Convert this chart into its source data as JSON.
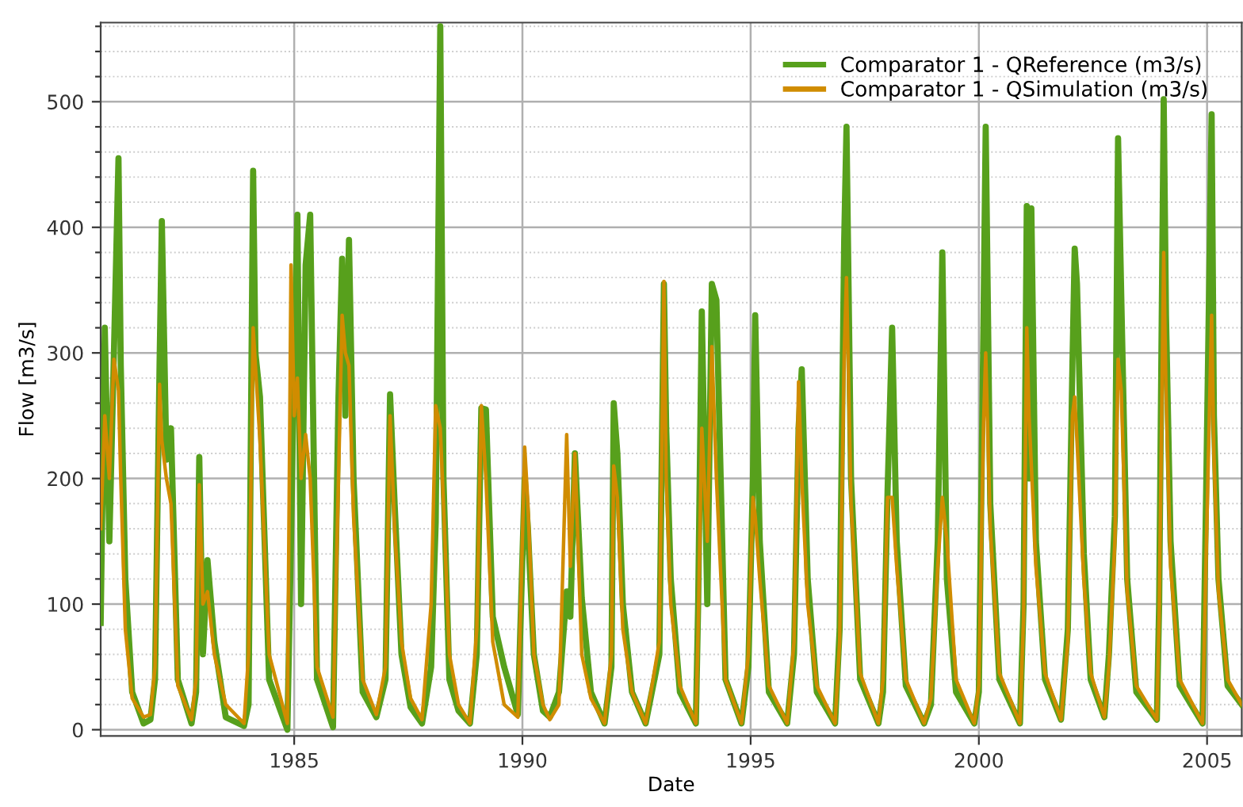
{
  "chart_data": {
    "type": "line",
    "xlabel": "Date",
    "ylabel": "Flow [m3/s]",
    "x": [
      1980.76,
      1980.85,
      1980.95,
      1981.05,
      1981.15,
      1981.2,
      1981.3,
      1981.45,
      1981.7,
      1981.85,
      1981.95,
      1982.05,
      1982.1,
      1982.2,
      1982.3,
      1982.45,
      1982.75,
      1982.85,
      1982.92,
      1983.0,
      1983.1,
      1983.25,
      1983.5,
      1983.9,
      1984.0,
      1984.1,
      1984.15,
      1984.25,
      1984.45,
      1984.85,
      1984.93,
      1985.0,
      1985.07,
      1985.15,
      1985.25,
      1985.35,
      1985.5,
      1985.85,
      1985.97,
      1986.05,
      1986.12,
      1986.2,
      1986.3,
      1986.5,
      1986.8,
      1987.0,
      1987.1,
      1987.2,
      1987.35,
      1987.55,
      1987.8,
      1988.0,
      1988.1,
      1988.2,
      1988.27,
      1988.4,
      1988.6,
      1988.85,
      1989.0,
      1989.1,
      1989.2,
      1989.35,
      1989.6,
      1989.9,
      1990.05,
      1990.12,
      1990.25,
      1990.45,
      1990.6,
      1990.8,
      1990.97,
      1991.05,
      1991.15,
      1991.3,
      1991.5,
      1991.8,
      1991.95,
      1992.0,
      1992.08,
      1992.2,
      1992.4,
      1992.7,
      1993.0,
      1993.1,
      1993.15,
      1993.25,
      1993.45,
      1993.8,
      1993.85,
      1993.93,
      1994.05,
      1994.15,
      1994.25,
      1994.45,
      1994.8,
      1994.95,
      1995.05,
      1995.1,
      1995.2,
      1995.4,
      1995.8,
      1995.95,
      1996.05,
      1996.12,
      1996.25,
      1996.45,
      1996.85,
      1996.95,
      1997.05,
      1997.1,
      1997.2,
      1997.4,
      1997.8,
      1997.9,
      1998.0,
      1998.1,
      1998.2,
      1998.4,
      1998.8,
      1998.95,
      1999.1,
      1999.2,
      1999.3,
      1999.5,
      1999.9,
      2000.0,
      2000.1,
      2000.15,
      2000.25,
      2000.45,
      2000.9,
      2000.98,
      2001.05,
      2001.1,
      2001.15,
      2001.25,
      2001.45,
      2001.8,
      2001.95,
      2002.05,
      2002.1,
      2002.15,
      2002.3,
      2002.45,
      2002.75,
      2002.85,
      2002.98,
      2003.05,
      2003.12,
      2003.25,
      2003.45,
      2003.9,
      2003.95,
      2004.05,
      2004.1,
      2004.2,
      2004.4,
      2004.9,
      2004.98,
      2005.1,
      2005.15,
      2005.25,
      2005.45,
      2005.76
    ],
    "series": [
      {
        "name": "Comparator 1 - QReference (m3/s)",
        "color": "#57a01c",
        "values": [
          85,
          320,
          150,
          300,
          455,
          290,
          120,
          30,
          5,
          8,
          40,
          290,
          405,
          215,
          240,
          40,
          5,
          30,
          217,
          60,
          135,
          70,
          10,
          3,
          20,
          445,
          300,
          265,
          40,
          0,
          150,
          300,
          410,
          100,
          370,
          410,
          40,
          2,
          265,
          375,
          250,
          390,
          200,
          30,
          10,
          40,
          267,
          180,
          60,
          18,
          5,
          50,
          165,
          560,
          200,
          40,
          15,
          5,
          60,
          256,
          255,
          90,
          50,
          12,
          200,
          160,
          60,
          15,
          10,
          30,
          110,
          90,
          220,
          105,
          30,
          5,
          50,
          260,
          220,
          100,
          30,
          5,
          60,
          355,
          240,
          120,
          30,
          5,
          100,
          333,
          100,
          355,
          342,
          40,
          5,
          50,
          200,
          330,
          150,
          30,
          5,
          60,
          240,
          287,
          120,
          30,
          5,
          80,
          390,
          480,
          200,
          40,
          5,
          30,
          190,
          320,
          150,
          35,
          5,
          20,
          150,
          380,
          120,
          30,
          5,
          30,
          320,
          480,
          180,
          40,
          5,
          100,
          417,
          200,
          415,
          150,
          40,
          8,
          80,
          290,
          383,
          355,
          140,
          40,
          10,
          60,
          170,
          471,
          345,
          120,
          30,
          8,
          100,
          502,
          330,
          150,
          35,
          5,
          190,
          490,
          250,
          120,
          35,
          20
        ]
      },
      {
        "name": "Comparator 1 - QSimulation (m3/s)",
        "color": "#d08c00",
        "values": [
          160,
          250,
          200,
          295,
          270,
          200,
          80,
          25,
          10,
          12,
          50,
          275,
          230,
          200,
          180,
          35,
          8,
          40,
          195,
          100,
          110,
          60,
          20,
          5,
          60,
          320,
          290,
          230,
          60,
          5,
          370,
          250,
          280,
          200,
          235,
          200,
          50,
          10,
          200,
          330,
          300,
          290,
          170,
          40,
          12,
          50,
          250,
          160,
          70,
          25,
          8,
          100,
          258,
          240,
          180,
          60,
          20,
          5,
          80,
          258,
          200,
          70,
          20,
          10,
          225,
          180,
          60,
          20,
          8,
          20,
          235,
          130,
          220,
          60,
          25,
          5,
          60,
          210,
          185,
          80,
          30,
          5,
          70,
          357,
          200,
          100,
          35,
          5,
          80,
          240,
          150,
          305,
          200,
          40,
          5,
          60,
          185,
          170,
          120,
          35,
          5,
          70,
          277,
          200,
          100,
          35,
          5,
          70,
          300,
          360,
          180,
          45,
          5,
          40,
          185,
          185,
          130,
          40,
          5,
          25,
          130,
          185,
          150,
          40,
          5,
          35,
          240,
          300,
          160,
          45,
          5,
          90,
          320,
          250,
          210,
          130,
          45,
          8,
          70,
          250,
          265,
          230,
          120,
          45,
          10,
          50,
          150,
          295,
          270,
          110,
          35,
          8,
          90,
          380,
          270,
          130,
          40,
          5,
          140,
          330,
          220,
          110,
          40,
          20
        ]
      }
    ],
    "xlim": [
      1980.76,
      2005.76
    ],
    "xticks": [
      1985,
      1990,
      1995,
      2000,
      2005
    ],
    "ylim": [
      -5,
      563
    ],
    "yticks": [
      0,
      {
        "value": 20,
        "label": null
      },
      {
        "value": 40,
        "label": null
      },
      {
        "value": 60,
        "label": null
      },
      {
        "value": 80,
        "label": null
      },
      100,
      {
        "value": 120,
        "label": null
      },
      {
        "value": 140,
        "label": null
      },
      {
        "value": 160,
        "label": null
      },
      {
        "value": 180,
        "label": null
      },
      200,
      {
        "value": 220,
        "label": null
      },
      {
        "value": 240,
        "label": null
      },
      {
        "value": 260,
        "label": null
      },
      {
        "value": 280,
        "label": null
      },
      300,
      {
        "value": 320,
        "label": null
      },
      {
        "value": 340,
        "label": null
      },
      {
        "value": 360,
        "label": null
      },
      {
        "value": 380,
        "label": null
      },
      400,
      {
        "value": 420,
        "label": null
      },
      {
        "value": 440,
        "label": null
      },
      {
        "value": 460,
        "label": null
      },
      {
        "value": 480,
        "label": null
      },
      500,
      {
        "value": 520,
        "label": null
      },
      {
        "value": 540,
        "label": null
      },
      {
        "value": 560,
        "label": null
      }
    ],
    "grid": true,
    "legend": "top right",
    "line_style": "solid"
  }
}
